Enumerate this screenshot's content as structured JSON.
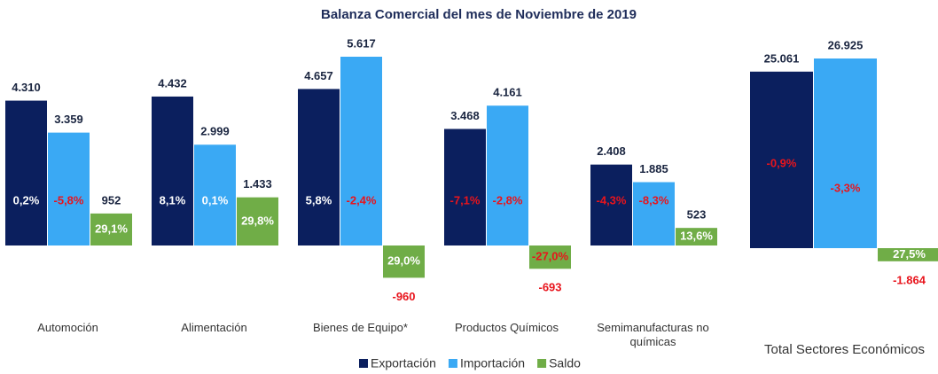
{
  "chart_data": [
    {
      "type": "bar",
      "title": "Balanza Comercial del mes de Noviembre de 2019",
      "categories": [
        "Automoción",
        "Alimentación",
        "Bienes de Equipo*",
        "Productos Químicos",
        "Semimanufacturas no químicas"
      ],
      "series": [
        {
          "name": "Exportación",
          "color": "#0b1f5e",
          "values": [
            4310,
            4432,
            4657,
            3468,
            2408
          ],
          "value_labels": [
            "4.310",
            "4.432",
            "4.657",
            "3.468",
            "2.408"
          ],
          "inner_labels": [
            "0,2%",
            "8,1%",
            "5,8%",
            "-7,1%",
            "-4,3%"
          ]
        },
        {
          "name": "Importación",
          "color": "#3aa9f4",
          "values": [
            3359,
            2999,
            5617,
            4161,
            1885
          ],
          "value_labels": [
            "3.359",
            "2.999",
            "5.617",
            "4.161",
            "1.885"
          ],
          "inner_labels": [
            "-5,8%",
            "0,1%",
            "-2,4%",
            "-2,8%",
            "-8,3%"
          ]
        },
        {
          "name": "Saldo",
          "color": "#70ad47",
          "values": [
            952,
            1433,
            -960,
            -693,
            523
          ],
          "value_labels": [
            "952",
            "1.433",
            "-960",
            "-693",
            "523"
          ],
          "inner_labels": [
            "29,1%",
            "29,8%",
            "29,0%",
            "-27,0%",
            "13,6%"
          ]
        }
      ],
      "legend": "bottom"
    },
    {
      "type": "bar",
      "categories": [
        "Total Sectores Económicos"
      ],
      "series": [
        {
          "name": "Exportación",
          "color": "#0b1f5e",
          "values": [
            25061
          ],
          "value_labels": [
            "25.061"
          ],
          "inner_labels": [
            "-0,9%"
          ]
        },
        {
          "name": "Importación",
          "color": "#3aa9f4",
          "values": [
            26925
          ],
          "value_labels": [
            "26.925"
          ],
          "inner_labels": [
            "-3,3%"
          ]
        },
        {
          "name": "Saldo",
          "color": "#70ad47",
          "values": [
            -1864
          ],
          "value_labels": [
            "-1.864"
          ],
          "inner_labels": [
            "27,5%"
          ]
        }
      ]
    }
  ]
}
